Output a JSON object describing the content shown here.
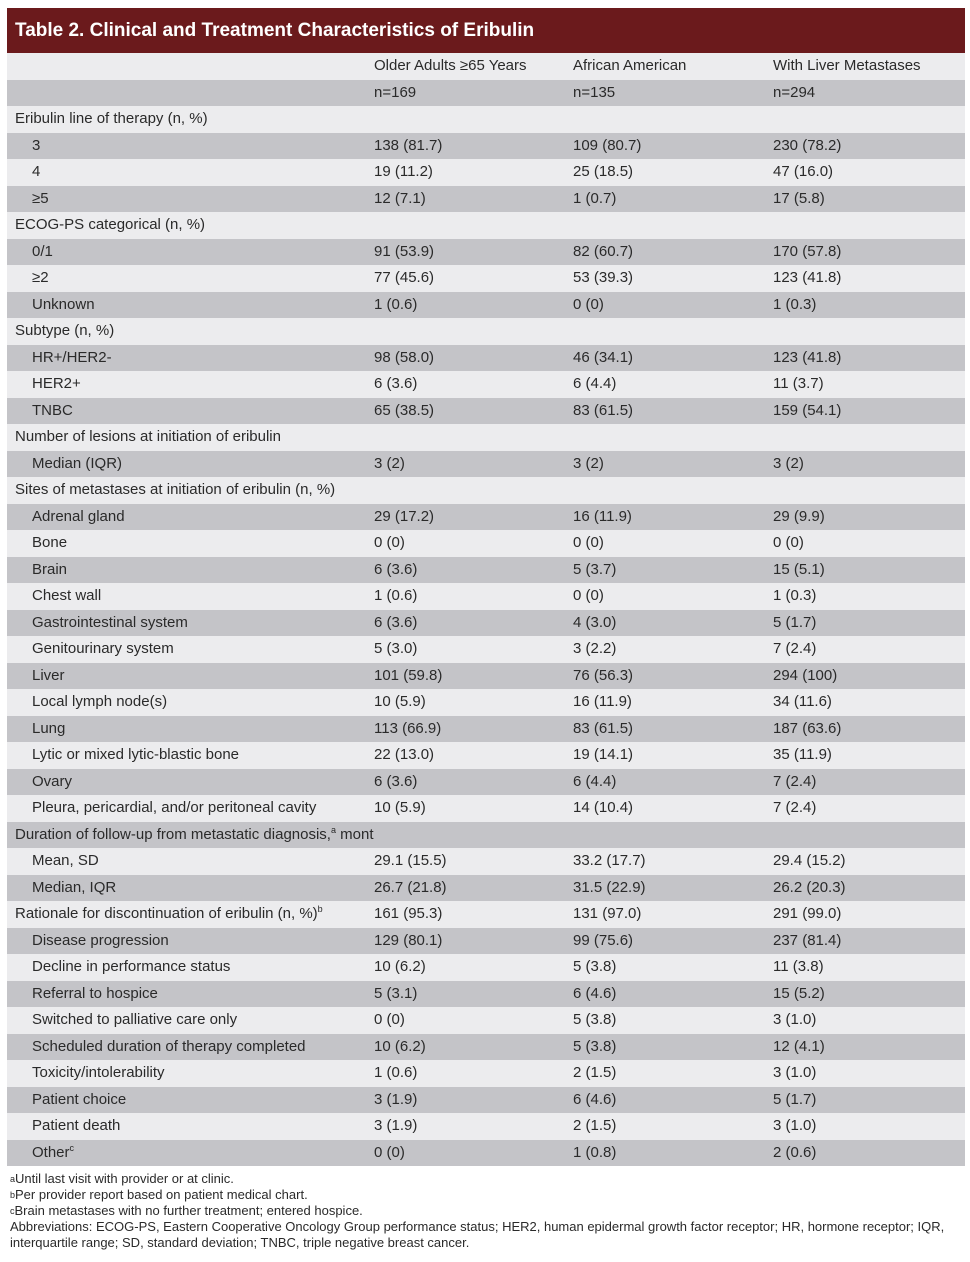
{
  "title": "Table 2. Clinical and Treatment Characteristics of Eribulin",
  "columns": [
    "",
    "Older Adults ≥65 Years",
    "African American",
    "With Liver Metastases"
  ],
  "counts": [
    "",
    "n=169",
    "n=135",
    "n=294"
  ],
  "rows": [
    {
      "label": "Eribulin line of therapy (n, %)",
      "sub": false,
      "values": [
        "",
        "",
        ""
      ]
    },
    {
      "label": "3",
      "sub": true,
      "values": [
        "138 (81.7)",
        "109 (80.7)",
        "230 (78.2)"
      ]
    },
    {
      "label": "4",
      "sub": true,
      "values": [
        "19 (11.2)",
        "25 (18.5)",
        "47 (16.0)"
      ]
    },
    {
      "label": "≥5",
      "sub": true,
      "values": [
        "12 (7.1)",
        "1 (0.7)",
        "17 (5.8)"
      ]
    },
    {
      "label": "ECOG-PS categorical (n, %)",
      "sub": false,
      "values": [
        "",
        "",
        ""
      ]
    },
    {
      "label": "0/1",
      "sub": true,
      "values": [
        "91 (53.9)",
        "82 (60.7)",
        "170 (57.8)"
      ]
    },
    {
      "label": "≥2",
      "sub": true,
      "values": [
        "77 (45.6)",
        "53 (39.3)",
        "123 (41.8)"
      ]
    },
    {
      "label": "Unknown",
      "sub": true,
      "values": [
        "1 (0.6)",
        "0 (0)",
        "1 (0.3)"
      ]
    },
    {
      "label": "Subtype (n, %)",
      "sub": false,
      "values": [
        "",
        "",
        ""
      ]
    },
    {
      "label": "HR+/HER2-",
      "sub": true,
      "values": [
        "98 (58.0)",
        "46 (34.1)",
        "123 (41.8)"
      ]
    },
    {
      "label": "HER2+",
      "sub": true,
      "values": [
        "6 (3.6)",
        "6 (4.4)",
        "11 (3.7)"
      ]
    },
    {
      "label": "TNBC",
      "sub": true,
      "values": [
        "65 (38.5)",
        "83 (61.5)",
        "159 (54.1)"
      ]
    },
    {
      "label": "Number of lesions at initiation of eribulin",
      "sub": false,
      "values": [
        "",
        "",
        ""
      ]
    },
    {
      "label": "Median (IQR)",
      "sub": true,
      "values": [
        "3 (2)",
        "3 (2)",
        "3 (2)"
      ]
    },
    {
      "label": "Sites of metastases at initiation of eribulin (n, %)",
      "sub": false,
      "values": [
        "",
        "",
        ""
      ]
    },
    {
      "label": "Adrenal gland",
      "sub": true,
      "values": [
        "29 (17.2)",
        "16 (11.9)",
        "29 (9.9)"
      ]
    },
    {
      "label": "Bone",
      "sub": true,
      "values": [
        "0 (0)",
        "0 (0)",
        "0 (0)"
      ]
    },
    {
      "label": "Brain",
      "sub": true,
      "values": [
        "6 (3.6)",
        "5 (3.7)",
        "15 (5.1)"
      ]
    },
    {
      "label": "Chest wall",
      "sub": true,
      "values": [
        "1 (0.6)",
        "0 (0)",
        "1 (0.3)"
      ]
    },
    {
      "label": "Gastrointestinal system",
      "sub": true,
      "values": [
        "6 (3.6)",
        "4 (3.0)",
        "5 (1.7)"
      ]
    },
    {
      "label": "Genitourinary system",
      "sub": true,
      "values": [
        "5 (3.0)",
        "3 (2.2)",
        "7 (2.4)"
      ]
    },
    {
      "label": "Liver",
      "sub": true,
      "values": [
        "101 (59.8)",
        "76 (56.3)",
        "294 (100)"
      ]
    },
    {
      "label": "Local lymph node(s)",
      "sub": true,
      "values": [
        "10 (5.9)",
        "16 (11.9)",
        "34 (11.6)"
      ]
    },
    {
      "label": "Lung",
      "sub": true,
      "values": [
        "113 (66.9)",
        "83 (61.5)",
        "187 (63.6)"
      ]
    },
    {
      "label": "Lytic or mixed lytic-blastic bone",
      "sub": true,
      "values": [
        "22 (13.0)",
        "19 (14.1)",
        "35 (11.9)"
      ]
    },
    {
      "label": "Ovary",
      "sub": true,
      "values": [
        "6 (3.6)",
        "6 (4.4)",
        "7 (2.4)"
      ]
    },
    {
      "label": "Pleura, pericardial, and/or peritoneal cavity",
      "sub": true,
      "values": [
        "10 (5.9)",
        "14 (10.4)",
        "7 (2.4)"
      ]
    },
    {
      "label": "Duration of follow-up from metastatic diagnosis,",
      "sup": "a",
      "after": " months",
      "sub": false,
      "values": [
        "",
        "",
        ""
      ]
    },
    {
      "label": "Mean, SD",
      "sub": true,
      "values": [
        "29.1 (15.5)",
        "33.2 (17.7)",
        "29.4 (15.2)"
      ]
    },
    {
      "label": "Median, IQR",
      "sub": true,
      "values": [
        "26.7 (21.8)",
        "31.5 (22.9)",
        "26.2 (20.3)"
      ]
    },
    {
      "label": "Rationale for discontinuation of eribulin (n, %)",
      "sup": "b",
      "sub": false,
      "values": [
        "161 (95.3)",
        "131 (97.0)",
        "291 (99.0)"
      ]
    },
    {
      "label": "Disease progression",
      "sub": true,
      "values": [
        "129 (80.1)",
        "99 (75.6)",
        "237 (81.4)"
      ]
    },
    {
      "label": "Decline in performance status",
      "sub": true,
      "values": [
        "10 (6.2)",
        "5 (3.8)",
        "11 (3.8)"
      ]
    },
    {
      "label": "Referral to hospice",
      "sub": true,
      "values": [
        "5 (3.1)",
        "6 (4.6)",
        "15 (5.2)"
      ]
    },
    {
      "label": "Switched to palliative care only",
      "sub": true,
      "values": [
        "0 (0)",
        "5 (3.8)",
        "3 (1.0)"
      ]
    },
    {
      "label": "Scheduled duration of therapy completed",
      "sub": true,
      "values": [
        "10 (6.2)",
        "5 (3.8)",
        "12 (4.1)"
      ]
    },
    {
      "label": "Toxicity/intolerability",
      "sub": true,
      "values": [
        "1 (0.6)",
        "2 (1.5)",
        "3 (1.0)"
      ]
    },
    {
      "label": "Patient choice",
      "sub": true,
      "values": [
        "3 (1.9)",
        "6 (4.6)",
        "5 (1.7)"
      ]
    },
    {
      "label": "Patient death",
      "sub": true,
      "values": [
        "3 (1.9)",
        "2 (1.5)",
        "3 (1.0)"
      ]
    },
    {
      "label": "Other",
      "sup": "c",
      "sub": true,
      "values": [
        "0 (0)",
        "1 (0.8)",
        "2 (0.6)"
      ]
    }
  ],
  "footnotes": [
    {
      "sup": "a",
      "text": "Until last visit with provider or at clinic."
    },
    {
      "sup": "b",
      "text": "Per provider report based on patient medical chart."
    },
    {
      "sup": "c",
      "text": "Brain metastases with no further treatment; entered hospice."
    },
    {
      "sup": "",
      "text": "Abbreviations: ECOG-PS, Eastern Cooperative Oncology Group performance status; HER2, human epidermal growth factor receptor; HR, hormone receptor; IQR, interquartile range; SD, standard deviation; TNBC, triple negative breast cancer."
    }
  ],
  "colors": {
    "title_bg": "#6b1a1c",
    "row_light": "#ececee",
    "row_dark": "#c4c4c8"
  }
}
